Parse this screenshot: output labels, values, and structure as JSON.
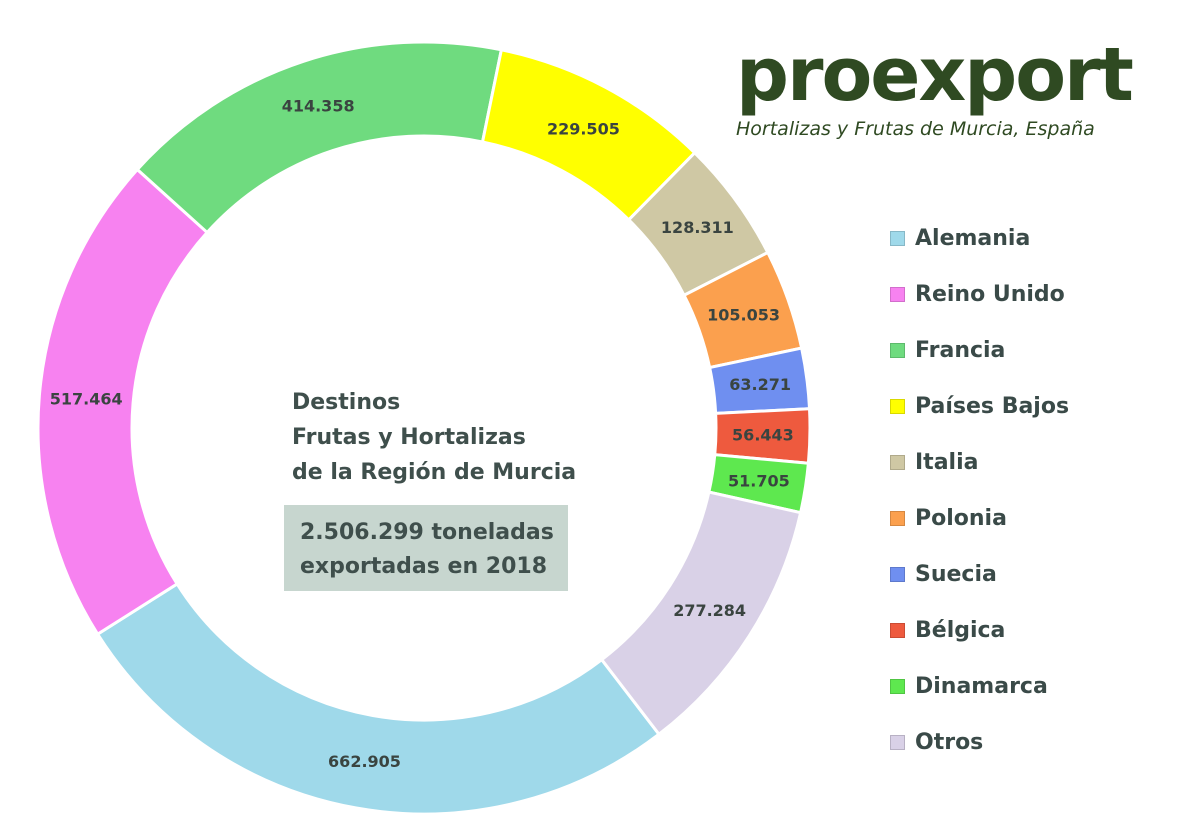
{
  "logo": {
    "brand": "proexport",
    "tagline": "Hortalizas y Frutas de Murcia, España"
  },
  "center": {
    "title_lines": [
      "Destinos",
      "Frutas y Hortalizas",
      "de la Región de Murcia"
    ],
    "total_lines": [
      "2.506.299 toneladas",
      "exportadas en 2018"
    ]
  },
  "chart_data": {
    "type": "pie",
    "style": "donut",
    "categories": [
      "Alemania",
      "Reino Unido",
      "Francia",
      "Países Bajos",
      "Italia",
      "Polonia",
      "Suecia",
      "Bélgica",
      "Dinamarca",
      "Otros"
    ],
    "values": [
      662905,
      517464,
      414358,
      229505,
      128311,
      105053,
      63271,
      56443,
      51705,
      277284
    ],
    "labels": [
      "662.905",
      "517.464",
      "414.358",
      "229.505",
      "128.311",
      "105.053",
      "63.271",
      "56.443",
      "51.705",
      "277.284"
    ],
    "colors": [
      "#9fd9ea",
      "#f782f0",
      "#6fdb7f",
      "#ffff00",
      "#cfc8a4",
      "#fba04e",
      "#6f8ff0",
      "#ee5a3e",
      "#5ee84f",
      "#d9d1e7"
    ],
    "legend_position": "right"
  }
}
